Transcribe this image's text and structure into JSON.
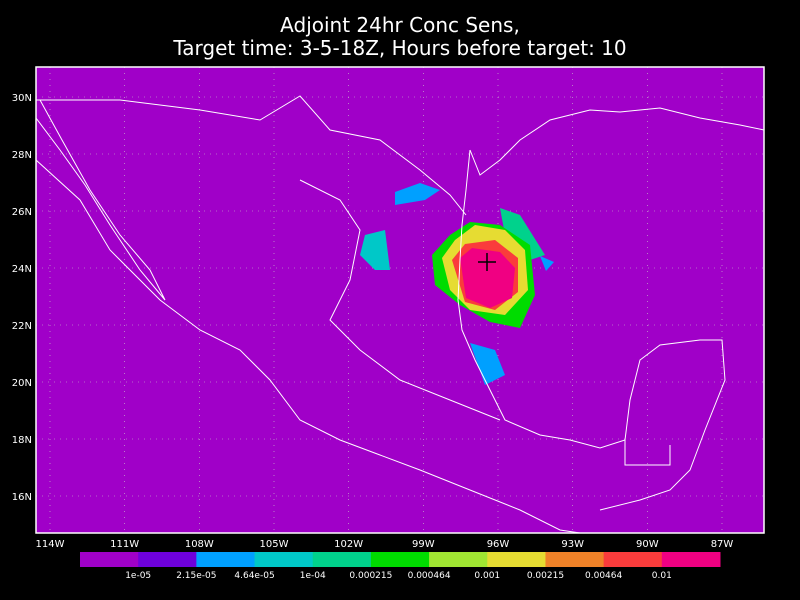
{
  "title": {
    "line1": "Adjoint 24hr Conc Sens,",
    "line2": "Target time: 3-5-18Z, Hours before target: 10"
  },
  "lat_labels": [
    "30N",
    "28N",
    "26N",
    "24N",
    "22N",
    "20N",
    "18N",
    "16N"
  ],
  "lon_labels": [
    "114W",
    "111W",
    "108W",
    "105W",
    "102W",
    "99W",
    "96W",
    "93W",
    "90W",
    "87W"
  ],
  "colorbar": {
    "colors": [
      "#a000c8",
      "#6e00dc",
      "#00a0ff",
      "#00c8c8",
      "#00d28c",
      "#00dc00",
      "#a0e632",
      "#e6dc32",
      "#f08228",
      "#fa3c3c",
      "#f00082"
    ],
    "labels": [
      "1e-05",
      "2.15e-05",
      "4.64e-05",
      "1e-04",
      "0.000215",
      "0.000464",
      "0.001",
      "0.00215",
      "0.00464",
      "0.01"
    ]
  }
}
